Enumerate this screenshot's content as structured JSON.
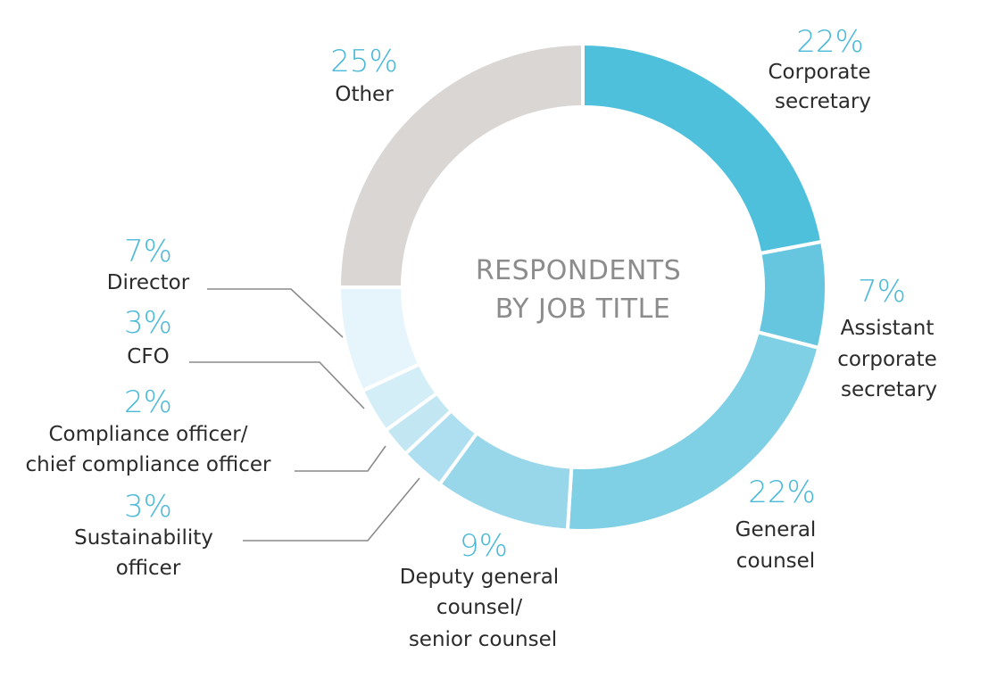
{
  "chart_data": {
    "type": "pie",
    "title": "RESPONDENTS BY JOB TITLE",
    "title_lines": [
      "RESPONDENTS",
      "BY JOB TITLE"
    ],
    "categories": [
      "Corporate secretary",
      "Assistant corporate secretary",
      "General counsel",
      "Deputy general counsel/ senior counsel",
      "Sustainability officer",
      "Compliance officer/ chief compliance officer",
      "CFO",
      "Director",
      "Other"
    ],
    "values": [
      22,
      7,
      22,
      9,
      3,
      2,
      3,
      7,
      25
    ],
    "percent_labels": [
      "22%",
      "7%",
      "22%",
      "9%",
      "3%",
      "2%",
      "3%",
      "7%",
      "25%"
    ],
    "label_lines": [
      [
        "Corporate",
        "secretary"
      ],
      [
        "Assistant",
        "corporate",
        "secretary"
      ],
      [
        "General",
        "counsel"
      ],
      [
        "Deputy general",
        "counsel/",
        "senior counsel"
      ],
      [
        "Sustainability",
        "officer"
      ],
      [
        "Compliance officer/",
        "chief compliance officer"
      ],
      [
        "CFO"
      ],
      [
        "Director"
      ],
      [
        "Other"
      ]
    ],
    "colors": [
      "#4fc0dc",
      "#66c6e0",
      "#7fcfe5",
      "#98d7ea",
      "#addff0",
      "#c2e7f3",
      "#d4eef7",
      "#e6f5fb",
      "#d9d6d4"
    ],
    "percent_color": "#4ab8d8",
    "chart_style": "donut",
    "start_direction": "top, clockwise"
  }
}
